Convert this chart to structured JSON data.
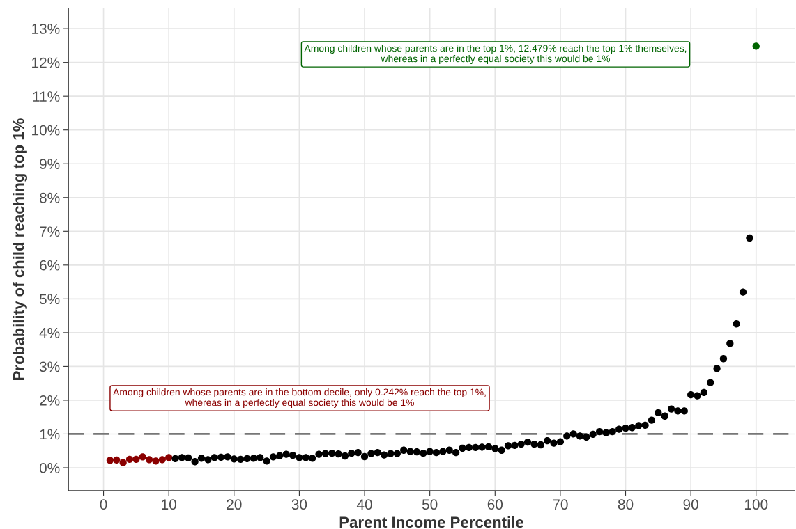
{
  "chart_data": {
    "type": "scatter",
    "xlabel": "Parent Income Percentile",
    "ylabel": "Probability of child reaching top 1%",
    "x": [
      1,
      2,
      3,
      4,
      5,
      6,
      7,
      8,
      9,
      10,
      11,
      12,
      13,
      14,
      15,
      16,
      17,
      18,
      19,
      20,
      21,
      22,
      23,
      24,
      25,
      26,
      27,
      28,
      29,
      30,
      31,
      32,
      33,
      34,
      35,
      36,
      37,
      38,
      39,
      40,
      41,
      42,
      43,
      44,
      45,
      46,
      47,
      48,
      49,
      50,
      51,
      52,
      53,
      54,
      55,
      56,
      57,
      58,
      59,
      60,
      61,
      62,
      63,
      64,
      65,
      66,
      67,
      68,
      69,
      70,
      71,
      72,
      73,
      74,
      75,
      76,
      77,
      78,
      79,
      80,
      81,
      82,
      83,
      84,
      85,
      86,
      87,
      88,
      89,
      90,
      91,
      92,
      93,
      94,
      95,
      96,
      97,
      98,
      99,
      100
    ],
    "values": [
      0.22,
      0.23,
      0.15,
      0.25,
      0.25,
      0.32,
      0.24,
      0.2,
      0.24,
      0.3,
      0.27,
      0.3,
      0.29,
      0.18,
      0.28,
      0.24,
      0.3,
      0.31,
      0.32,
      0.26,
      0.25,
      0.27,
      0.28,
      0.3,
      0.2,
      0.32,
      0.36,
      0.4,
      0.37,
      0.3,
      0.3,
      0.28,
      0.4,
      0.42,
      0.43,
      0.41,
      0.35,
      0.43,
      0.45,
      0.33,
      0.42,
      0.45,
      0.38,
      0.42,
      0.42,
      0.52,
      0.48,
      0.47,
      0.43,
      0.48,
      0.45,
      0.48,
      0.52,
      0.45,
      0.58,
      0.6,
      0.6,
      0.61,
      0.62,
      0.57,
      0.52,
      0.65,
      0.66,
      0.7,
      0.76,
      0.7,
      0.68,
      0.8,
      0.73,
      0.77,
      0.94,
      1.0,
      0.94,
      0.91,
      0.99,
      1.07,
      1.04,
      1.07,
      1.14,
      1.17,
      1.19,
      1.25,
      1.26,
      1.41,
      1.63,
      1.53,
      1.74,
      1.68,
      1.68,
      2.16,
      2.13,
      2.23,
      2.52,
      2.94,
      3.23,
      3.68,
      4.26,
      5.2,
      6.8,
      12.479
    ],
    "colors": [
      "#8b0000",
      "#8b0000",
      "#8b0000",
      "#8b0000",
      "#8b0000",
      "#8b0000",
      "#8b0000",
      "#8b0000",
      "#8b0000",
      "#8b0000",
      "#000000",
      "#000000",
      "#000000",
      "#000000",
      "#000000",
      "#000000",
      "#000000",
      "#000000",
      "#000000",
      "#000000",
      "#000000",
      "#000000",
      "#000000",
      "#000000",
      "#000000",
      "#000000",
      "#000000",
      "#000000",
      "#000000",
      "#000000",
      "#000000",
      "#000000",
      "#000000",
      "#000000",
      "#000000",
      "#000000",
      "#000000",
      "#000000",
      "#000000",
      "#000000",
      "#000000",
      "#000000",
      "#000000",
      "#000000",
      "#000000",
      "#000000",
      "#000000",
      "#000000",
      "#000000",
      "#000000",
      "#000000",
      "#000000",
      "#000000",
      "#000000",
      "#000000",
      "#000000",
      "#000000",
      "#000000",
      "#000000",
      "#000000",
      "#000000",
      "#000000",
      "#000000",
      "#000000",
      "#000000",
      "#000000",
      "#000000",
      "#000000",
      "#000000",
      "#000000",
      "#000000",
      "#000000",
      "#000000",
      "#000000",
      "#000000",
      "#000000",
      "#000000",
      "#000000",
      "#000000",
      "#000000",
      "#000000",
      "#000000",
      "#000000",
      "#000000",
      "#000000",
      "#000000",
      "#000000",
      "#000000",
      "#000000",
      "#000000",
      "#000000",
      "#000000",
      "#000000",
      "#000000",
      "#000000",
      "#000000",
      "#000000",
      "#000000",
      "#000000",
      "#006400"
    ],
    "marker": "circle",
    "xlim": [
      -5.4,
      105.9
    ],
    "ylim": [
      -0.68,
      13.6
    ],
    "xticks": [
      0,
      10,
      20,
      30,
      40,
      50,
      60,
      70,
      80,
      90,
      100
    ],
    "yticks": [
      {
        "value": 0,
        "label": "0%"
      },
      {
        "value": 1,
        "label": "1%"
      },
      {
        "value": 2,
        "label": "2%"
      },
      {
        "value": 3,
        "label": "3%"
      },
      {
        "value": 4,
        "label": "4%"
      },
      {
        "value": 5,
        "label": "5%"
      },
      {
        "value": 6,
        "label": "6%"
      },
      {
        "value": 7,
        "label": "7%"
      },
      {
        "value": 8,
        "label": "8%"
      },
      {
        "value": 9,
        "label": "9%"
      },
      {
        "value": 10,
        "label": "10%"
      },
      {
        "value": 11,
        "label": "11%"
      },
      {
        "value": 12,
        "label": "12%"
      },
      {
        "value": 13,
        "label": "13%"
      }
    ],
    "grid": true,
    "ref_lines": [
      {
        "axis": "y",
        "value": 1,
        "color": "#777777",
        "line_style": "dashed"
      }
    ],
    "annotations": [
      "Among children whose parents are in the bottom decile, only 0.242% reach the top 1%,\nwhereas in a perfectly equal society this would be 1%",
      "Among children whose parents are in the top 1%, 12.479% reach the top 1% themselves,\nwhereas in a perfectly equal society this would be 1%"
    ]
  }
}
